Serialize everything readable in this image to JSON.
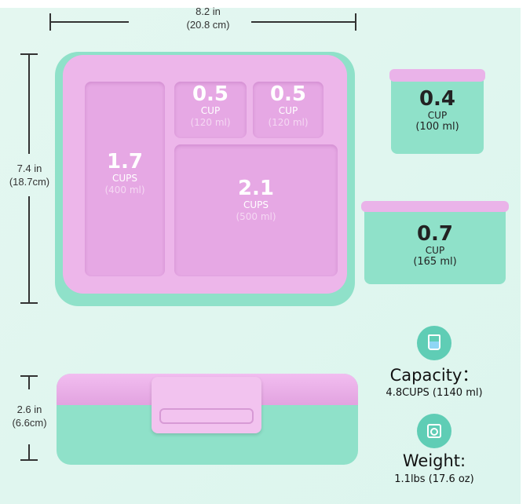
{
  "dimensions": {
    "width_in": "8.2 in",
    "width_cm": "(20.8 cm)",
    "length_in": "7.4 in",
    "length_cm": "(18.7cm)",
    "height_in": "2.6 in",
    "height_cm": "(6.6cm)"
  },
  "compartments": [
    {
      "amount": "1.7",
      "unit": "CUPS",
      "ml": "(400 ml)"
    },
    {
      "amount": "0.5",
      "unit": "CUP",
      "ml": "(120 ml)"
    },
    {
      "amount": "0.5",
      "unit": "CUP",
      "ml": "(120 ml)"
    },
    {
      "amount": "2.1",
      "unit": "CUPS",
      "ml": "(500 ml)"
    }
  ],
  "containers": [
    {
      "amount": "0.4",
      "unit": "CUP",
      "ml": "(100 ml)"
    },
    {
      "amount": "0.7",
      "unit": "CUP",
      "ml": "(165 ml)"
    }
  ],
  "capacity": {
    "icon": "cup-icon",
    "label": "Capacity：",
    "value": "4.8CUPS (1140 ml)"
  },
  "weight": {
    "icon": "scale-icon",
    "label": "Weight:",
    "value": "1.1lbs (17.6 oz)"
  },
  "colors": {
    "pink": "#e6a8e4",
    "teal": "#8fe1c9",
    "background": "#e0f6ef"
  }
}
